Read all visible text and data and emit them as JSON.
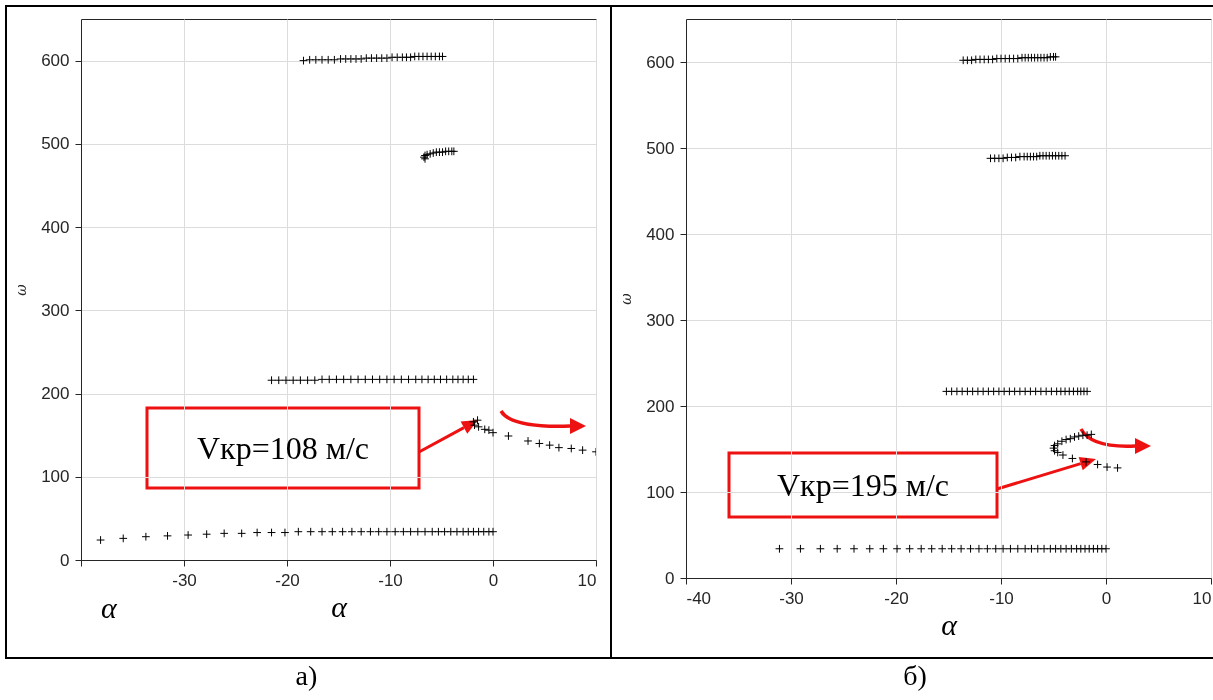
{
  "chart_data": [
    {
      "type": "scatter",
      "title": "а)",
      "xlabel": "α",
      "ylabel": "ω",
      "xlim": [
        -40,
        10
      ],
      "ylim": [
        0,
        650
      ],
      "xticks": [
        {
          "value": -40,
          "label": null
        },
        -30,
        -20,
        -10,
        0,
        10
      ],
      "yticks": [
        0,
        100,
        200,
        300,
        400,
        500,
        600
      ],
      "grid": true,
      "marker": "cross",
      "annotations": [
        "Vкр=108 м/с",
        "α"
      ],
      "series": [
        {
          "color": "#000000",
          "x": [
            -38.1,
            -35.9,
            -33.7,
            -31.6,
            -29.6,
            -27.8,
            -26.1,
            -24.4,
            -22.9,
            -21.5,
            -20.2,
            -18.9,
            -17.7,
            -16.6,
            -15.6,
            -14.6,
            -13.7,
            -12.8,
            -11.9,
            -11.1,
            -10.3,
            -9.5,
            -8.7,
            -8.0,
            -7.3,
            -6.6,
            -5.9,
            -5.3,
            -4.7,
            -4.1,
            -3.5,
            -2.9,
            -2.4,
            -1.9,
            -1.4,
            -0.9,
            -0.4,
            0
          ],
          "values": [
            24,
            26,
            28,
            29,
            30,
            31,
            32,
            32,
            33,
            33,
            33,
            34,
            34,
            34,
            34,
            34,
            34,
            34,
            34,
            34,
            34,
            34,
            34,
            34,
            34,
            34,
            34,
            34,
            34,
            34,
            34,
            34,
            34,
            34,
            34,
            34,
            34,
            34
          ]
        },
        {
          "color": "#000000",
          "x": [
            -21.5,
            -20.8,
            -20.1,
            -19.4,
            -18.7,
            -18.0,
            -17.3,
            -16.6,
            -15.9,
            -15.2,
            -14.5,
            -13.8,
            -13.1,
            -12.4,
            -11.7,
            -11.0,
            -10.3,
            -9.6,
            -8.9,
            -8.2,
            -7.5,
            -6.9,
            -6.3,
            -5.7,
            -5.1,
            -4.5,
            -3.9,
            -3.4,
            -2.9,
            -2.4,
            -1.9
          ],
          "values": [
            216,
            216,
            216,
            216,
            216,
            216,
            216,
            217,
            217,
            217,
            217,
            217,
            217,
            217,
            217,
            217,
            217,
            217,
            217,
            217,
            217,
            217,
            217,
            217,
            217,
            217,
            217,
            217,
            217,
            217,
            217
          ]
        },
        {
          "color": "#000000",
          "x": [
            -18.4,
            -17.8,
            -17.2,
            -16.6,
            -16.0,
            -15.4,
            -14.8,
            -14.3,
            -13.8,
            -13.3,
            -12.8,
            -12.3,
            -11.8,
            -11.3,
            -10.8,
            -10.3,
            -9.8,
            -9.3,
            -8.8,
            -8.4,
            -8.0,
            -7.6,
            -7.2,
            -6.8,
            -6.4,
            -6.0,
            -5.6,
            -5.2,
            -4.9
          ],
          "values": [
            600,
            601,
            601,
            601,
            601,
            601,
            602,
            602,
            602,
            602,
            602,
            603,
            603,
            603,
            603,
            603,
            604,
            604,
            604,
            604,
            604,
            605,
            605,
            605,
            605,
            605,
            605,
            605,
            605
          ]
        },
        {
          "color": "#000000",
          "x": [
            -3.8,
            -4.0,
            -4.3,
            -4.6,
            -4.9,
            -5.2,
            -5.5,
            -5.8,
            -6.1,
            -6.4,
            -6.6,
            -6.7,
            -6.6
          ],
          "values": [
            491,
            491,
            491,
            491,
            490,
            490,
            490,
            489,
            488,
            487,
            486,
            484,
            482
          ]
        },
        {
          "color": "#000000",
          "x": [
            -1.5,
            -1.9,
            -1.8,
            -1.4,
            -0.8,
            -0.4,
            0,
            1.5,
            3.4,
            4.5,
            5.5,
            6.4,
            7.6,
            8.7,
            10
          ],
          "values": [
            168,
            166,
            162,
            160,
            157,
            156,
            153,
            149,
            143,
            140,
            138,
            135,
            134,
            132,
            130
          ]
        }
      ]
    },
    {
      "type": "scatter",
      "title": "б)",
      "xlabel": "α",
      "ylabel": "ω",
      "xlim": [
        -40,
        10
      ],
      "ylim": [
        0,
        650
      ],
      "xticks": [
        -40,
        -30,
        -20,
        -10,
        0,
        10
      ],
      "yticks": [
        0,
        100,
        200,
        300,
        400,
        500,
        600
      ],
      "grid": true,
      "marker": "cross",
      "annotations": [
        "Vкр=195 м/с"
      ],
      "series": [
        {
          "color": "#000000",
          "x": [
            -31.1,
            -29.1,
            -27.2,
            -25.6,
            -24.0,
            -22.5,
            -21.2,
            -19.9,
            -18.7,
            -17.6,
            -16.6,
            -15.6,
            -14.7,
            -13.8,
            -12.9,
            -12.1,
            -11.3,
            -10.5,
            -9.8,
            -9.1,
            -8.4,
            -7.7,
            -7.1,
            -6.5,
            -5.9,
            -5.3,
            -4.8,
            -4.3,
            -3.8,
            -3.3,
            -2.8,
            -2.4,
            -2.0,
            -1.6,
            -1.2,
            -0.8,
            -0.4,
            0
          ],
          "values": [
            34,
            34,
            34,
            34,
            34,
            34,
            34,
            34,
            34,
            34,
            34,
            34,
            34,
            34,
            34,
            34,
            34,
            34,
            34,
            34,
            34,
            34,
            34,
            34,
            34,
            34,
            34,
            34,
            34,
            34,
            34,
            34,
            34,
            34,
            34,
            34,
            34,
            34
          ]
        },
        {
          "color": "#000000",
          "x": [
            -15.2,
            -14.7,
            -14.2,
            -13.7,
            -13.2,
            -12.7,
            -12.2,
            -11.7,
            -11.2,
            -10.7,
            -10.2,
            -9.7,
            -9.2,
            -8.7,
            -8.2,
            -7.7,
            -7.2,
            -6.7,
            -6.2,
            -5.7,
            -5.2,
            -4.7,
            -4.3,
            -3.9,
            -3.5,
            -3.1,
            -2.7,
            -2.4,
            -2.1,
            -1.8
          ],
          "values": [
            217,
            217,
            217,
            217,
            217,
            217,
            217,
            217,
            217,
            217,
            217,
            217,
            217,
            217,
            217,
            217,
            217,
            217,
            217,
            217,
            217,
            217,
            217,
            217,
            217,
            217,
            217,
            217,
            217,
            217
          ]
        },
        {
          "color": "#000000",
          "x": [
            -13.6,
            -13.2,
            -12.8,
            -12.4,
            -12.0,
            -11.6,
            -11.2,
            -10.8,
            -10.4,
            -10.0,
            -9.6,
            -9.2,
            -8.8,
            -8.4,
            -8.0,
            -7.7,
            -7.4,
            -7.1,
            -6.8,
            -6.5,
            -6.2,
            -5.9,
            -5.6,
            -5.3,
            -5.0,
            -4.8
          ],
          "values": [
            602,
            602,
            602,
            603,
            603,
            603,
            603,
            603,
            604,
            604,
            604,
            604,
            604,
            604,
            605,
            605,
            605,
            605,
            605,
            605,
            605,
            605,
            605,
            606,
            606,
            606
          ]
        },
        {
          "color": "#000000",
          "x": [
            -11.0,
            -10.6,
            -10.2,
            -9.8,
            -9.4,
            -9.0,
            -8.6,
            -8.2,
            -7.8,
            -7.5,
            -7.2,
            -6.9,
            -6.6,
            -6.3,
            -6.0,
            -5.7,
            -5.4,
            -5.1,
            -4.8,
            -4.5,
            -4.2,
            -3.9
          ],
          "values": [
            488,
            488,
            488,
            488,
            489,
            489,
            489,
            490,
            490,
            490,
            490,
            490,
            490,
            491,
            491,
            491,
            491,
            491,
            491,
            491,
            491,
            491
          ]
        },
        {
          "color": "#000000",
          "x": [
            -1.4,
            -1.8,
            -2.2,
            -2.6,
            -3.0,
            -3.4,
            -3.8,
            -4.2,
            -4.6,
            -4.9,
            -5.0,
            -4.9,
            -4.6,
            -4.1,
            -3.2,
            -1.9,
            -0.8,
            0.1,
            1.1
          ],
          "values": [
            167,
            166,
            166,
            165,
            164,
            162,
            161,
            159,
            156,
            154,
            151,
            148,
            146,
            143,
            139,
            135,
            132,
            129,
            128
          ]
        }
      ]
    }
  ]
}
